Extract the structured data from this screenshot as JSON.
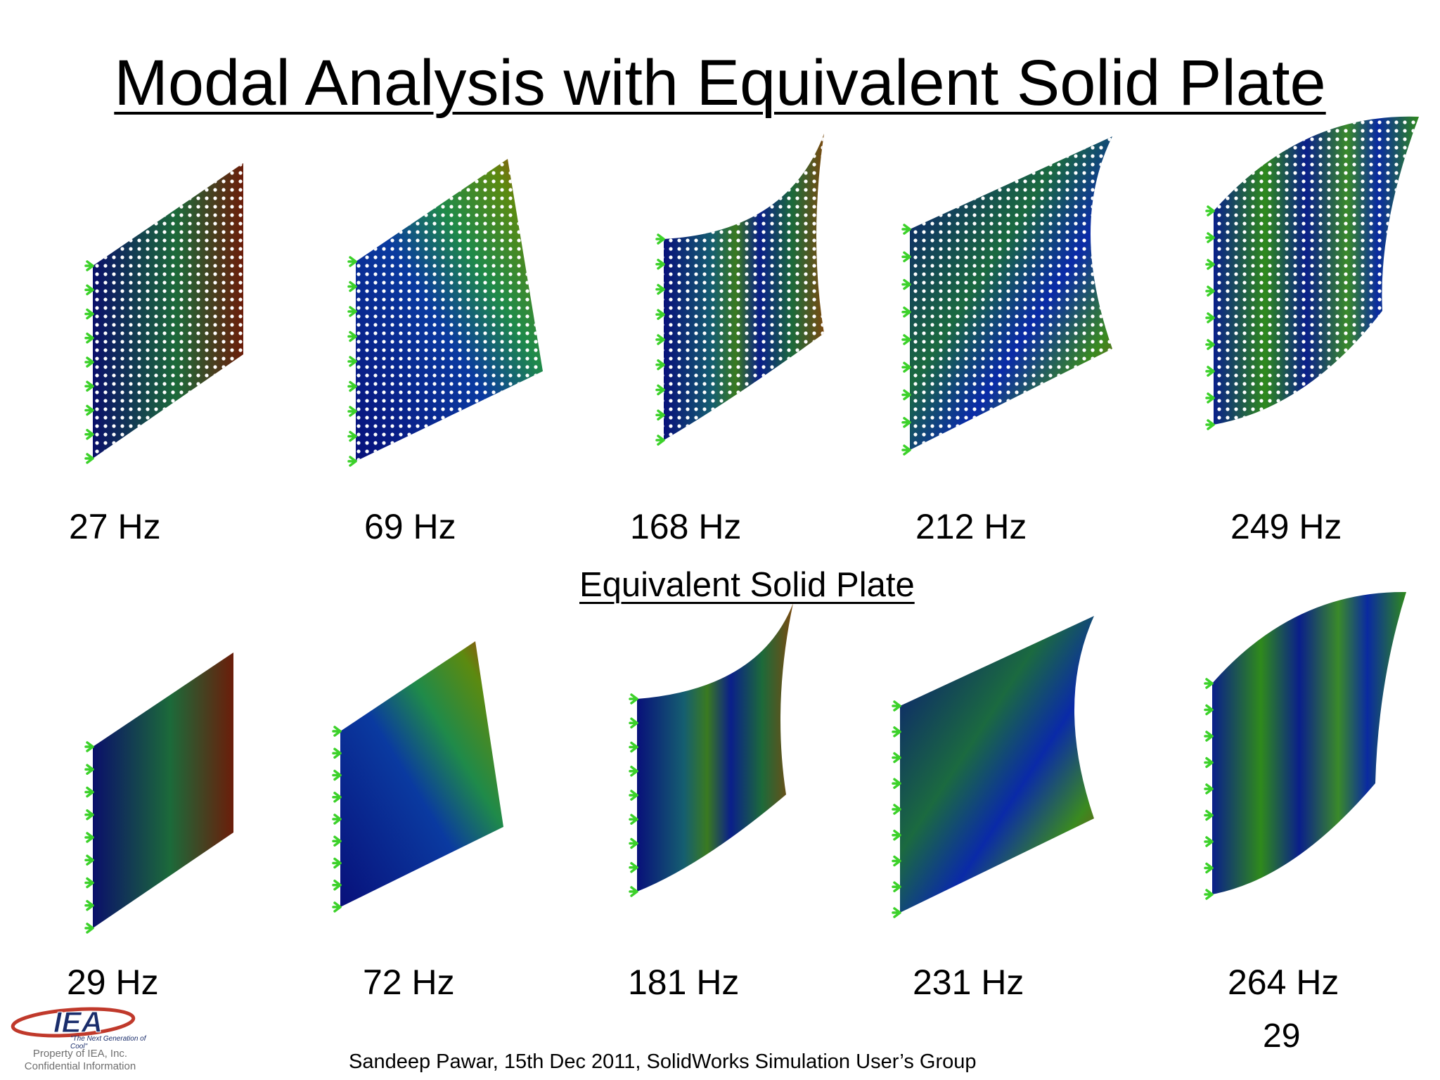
{
  "slide": {
    "title": "Modal Analysis with Equivalent Solid Plate",
    "subtitle": "Equivalent Solid Plate",
    "page_number": "29",
    "footer": "Sandeep Pawar, 15th Dec 2011, SolidWorks Simulation User’s Group"
  },
  "perforated_plate_modes": [
    {
      "frequency": "27 Hz"
    },
    {
      "frequency": "69 Hz"
    },
    {
      "frequency": "168 Hz"
    },
    {
      "frequency": "212 Hz"
    },
    {
      "frequency": "249 Hz"
    }
  ],
  "solid_plate_modes": [
    {
      "frequency": "29 Hz"
    },
    {
      "frequency": "72 Hz"
    },
    {
      "frequency": "181 Hz"
    },
    {
      "frequency": "231 Hz"
    },
    {
      "frequency": "264 Hz"
    }
  ],
  "logo": {
    "text": "IEA",
    "tagline": "\"The Next Generation of Cool\"",
    "property_line1": "Property of IEA, Inc.",
    "property_line2": "Confidential Information"
  },
  "colors": {
    "plate_blue": "#0a1a80",
    "plate_green": "#2f8a1c",
    "plate_red": "#b1320e",
    "fixture_green": "#3cd12a",
    "logo_red": "#c0392b",
    "logo_navy": "#1a2d6b"
  },
  "icons": {
    "fixture": "fixed-support-arrow-icon"
  }
}
